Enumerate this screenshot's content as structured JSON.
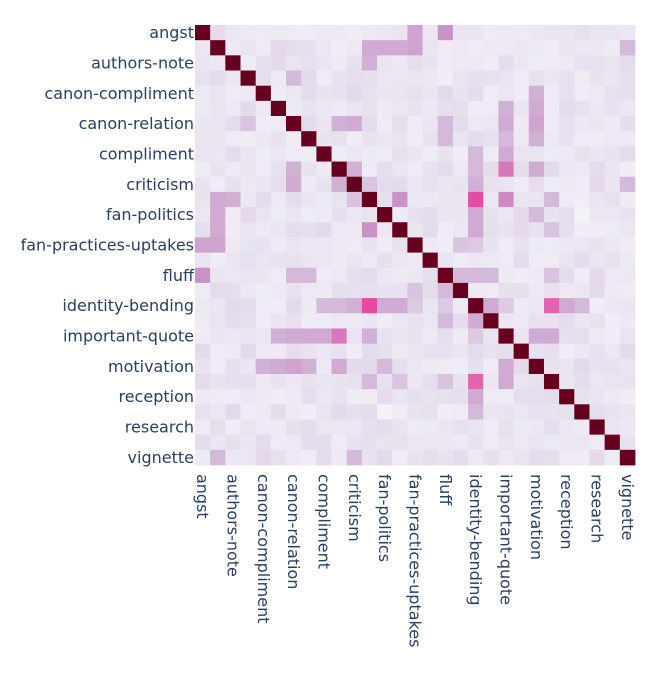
{
  "chart_data": {
    "type": "heatmap",
    "title": "",
    "xlabel": "",
    "ylabel": "",
    "colorscale": [
      "#f7f4f9",
      "#e7e1ef",
      "#d4b9da",
      "#c994c7",
      "#df65b0",
      "#e7298a",
      "#ce1256",
      "#980043",
      "#67001f"
    ],
    "zlim": [
      0,
      1
    ],
    "categories": [
      "angst",
      "authors-note",
      "canon-compliment",
      "canon-relation",
      "compliment",
      "criticism",
      "fan-politics",
      "fan-practices-uptakes",
      "fluff",
      "identity-bending",
      "important-quote",
      "motivation",
      "reception",
      "research",
      "vignette"
    ],
    "x_labels": [
      "angst",
      "",
      "authors-note",
      "",
      "canon-compliment",
      "",
      "canon-relation",
      "",
      "compliment",
      "",
      "criticism",
      "",
      "fan-politics",
      "",
      "fan-practices-uptakes",
      "",
      "fluff",
      "",
      "identity-bending",
      "",
      "important-quote",
      "",
      "motivation",
      "",
      "reception",
      "",
      "research",
      "",
      "vignette"
    ],
    "y_labels": [
      "angst",
      "",
      "authors-note",
      "",
      "canon-compliment",
      "",
      "canon-relation",
      "",
      "compliment",
      "",
      "criticism",
      "",
      "fan-politics",
      "",
      "fan-practices-uptakes",
      "",
      "fluff",
      "",
      "identity-bending",
      "",
      "important-quote",
      "",
      "motivation",
      "",
      "reception",
      "",
      "research",
      "",
      "vignette"
    ],
    "highlights": [
      {
        "r": 0,
        "c": 16,
        "v": 0.38
      },
      {
        "r": 1,
        "c": 12,
        "v": 0.3
      },
      {
        "r": 1,
        "c": 13,
        "v": 0.3
      },
      {
        "r": 1,
        "c": 14,
        "v": 0.32
      },
      {
        "r": 1,
        "c": 28,
        "v": 0.25
      },
      {
        "r": 2,
        "c": 11,
        "v": 0.28
      },
      {
        "r": 3,
        "c": 6,
        "v": 0.25
      },
      {
        "r": 4,
        "c": 22,
        "v": 0.28
      },
      {
        "r": 5,
        "c": 22,
        "v": 0.3
      },
      {
        "r": 6,
        "c": 3,
        "v": 0.22
      },
      {
        "r": 6,
        "c": 10,
        "v": 0.3
      },
      {
        "r": 6,
        "c": 16,
        "v": 0.25
      },
      {
        "r": 6,
        "c": 22,
        "v": 0.32
      },
      {
        "r": 7,
        "c": 16,
        "v": 0.25
      },
      {
        "r": 7,
        "c": 20,
        "v": 0.25
      },
      {
        "r": 7,
        "c": 22,
        "v": 0.28
      },
      {
        "r": 8,
        "c": 8,
        "v": 0.22
      },
      {
        "r": 9,
        "c": 6,
        "v": 0.28
      },
      {
        "r": 9,
        "c": 10,
        "v": 0.28
      },
      {
        "r": 9,
        "c": 20,
        "v": 0.45
      },
      {
        "r": 9,
        "c": 22,
        "v": 0.3
      },
      {
        "r": 10,
        "c": 28,
        "v": 0.25
      },
      {
        "r": 11,
        "c": 1,
        "v": 0.3
      },
      {
        "r": 11,
        "c": 10,
        "v": 0.22
      },
      {
        "r": 11,
        "c": 13,
        "v": 0.38
      },
      {
        "r": 11,
        "c": 20,
        "v": 0.4
      },
      {
        "r": 11,
        "c": 23,
        "v": 0.25
      },
      {
        "r": 12,
        "c": 12,
        "v": 0.45
      },
      {
        "r": 13,
        "c": 1,
        "v": 0.3
      },
      {
        "r": 14,
        "c": 0,
        "v": 0.32
      },
      {
        "r": 16,
        "c": 17,
        "v": 0.25
      },
      {
        "r": 16,
        "c": 18,
        "v": 0.25
      },
      {
        "r": 16,
        "c": 19,
        "v": 0.25
      },
      {
        "r": 17,
        "c": 14,
        "v": 0.22
      },
      {
        "r": 18,
        "c": 8,
        "v": 0.25
      },
      {
        "r": 18,
        "c": 9,
        "v": 0.25
      },
      {
        "r": 18,
        "c": 10,
        "v": 0.28
      },
      {
        "r": 18,
        "c": 11,
        "v": 0.55
      },
      {
        "r": 18,
        "c": 12,
        "v": 0.3
      },
      {
        "r": 18,
        "c": 13,
        "v": 0.3
      },
      {
        "r": 18,
        "c": 14,
        "v": 0.2
      },
      {
        "r": 18,
        "c": 16,
        "v": 0.2
      },
      {
        "r": 18,
        "c": 20,
        "v": 0.2
      },
      {
        "r": 18,
        "c": 23,
        "v": 0.5
      },
      {
        "r": 18,
        "c": 24,
        "v": 0.3
      },
      {
        "r": 18,
        "c": 25,
        "v": 0.25
      },
      {
        "r": 19,
        "c": 18,
        "v": 0.3
      },
      {
        "r": 19,
        "c": 19,
        "v": 0.3
      },
      {
        "r": 20,
        "c": 5,
        "v": 0.28
      },
      {
        "r": 20,
        "c": 6,
        "v": 0.3
      },
      {
        "r": 20,
        "c": 7,
        "v": 0.3
      },
      {
        "r": 20,
        "c": 8,
        "v": 0.3
      },
      {
        "r": 20,
        "c": 11,
        "v": 0.28
      },
      {
        "r": 20,
        "c": 22,
        "v": 0.3
      },
      {
        "r": 20,
        "c": 23,
        "v": 0.3
      },
      {
        "r": 22,
        "c": 12,
        "v": 0.25
      },
      {
        "r": 23,
        "c": 13,
        "v": 0.22
      },
      {
        "r": 23,
        "c": 16,
        "v": 0.22
      },
      {
        "r": 25,
        "c": 12,
        "v": 0.02
      },
      {
        "r": 25,
        "c": 13,
        "v": 0.05
      }
    ]
  }
}
